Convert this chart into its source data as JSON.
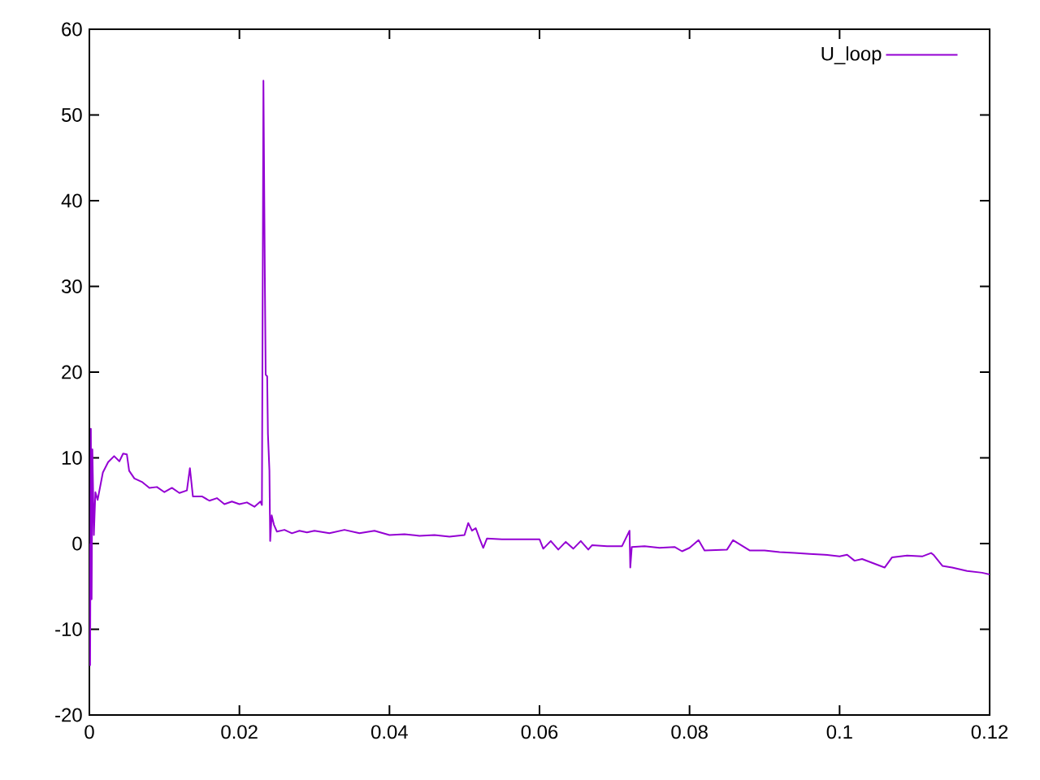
{
  "chart_data": {
    "type": "line",
    "xlim": [
      0,
      0.12
    ],
    "ylim": [
      -20,
      60
    ],
    "xticks": [
      0,
      0.02,
      0.04,
      0.06,
      0.08,
      0.1,
      0.12
    ],
    "yticks": [
      -20,
      -10,
      0,
      10,
      20,
      30,
      40,
      50,
      60
    ],
    "legend": "top right",
    "line_style": "solid",
    "series": [
      {
        "name": "U_loop",
        "color": "#9400d3",
        "x": [
          0.0,
          0.0001,
          0.0002,
          0.0003,
          0.0004,
          0.0006,
          0.0008,
          0.0011,
          0.0018,
          0.0025,
          0.0033,
          0.004,
          0.0045,
          0.005,
          0.0053,
          0.006,
          0.007,
          0.008,
          0.009,
          0.01,
          0.011,
          0.012,
          0.013,
          0.0134,
          0.0138,
          0.015,
          0.016,
          0.017,
          0.018,
          0.019,
          0.02,
          0.021,
          0.022,
          0.0228,
          0.023,
          0.0232,
          0.0234,
          0.0235,
          0.0237,
          0.0238,
          0.024,
          0.0241,
          0.0243,
          0.0246,
          0.025,
          0.026,
          0.027,
          0.028,
          0.029,
          0.03,
          0.032,
          0.034,
          0.036,
          0.038,
          0.04,
          0.042,
          0.044,
          0.046,
          0.048,
          0.05,
          0.0505,
          0.051,
          0.0515,
          0.052,
          0.0525,
          0.053,
          0.055,
          0.058,
          0.06,
          0.0605,
          0.0615,
          0.0625,
          0.0635,
          0.0645,
          0.0655,
          0.0665,
          0.067,
          0.069,
          0.071,
          0.072,
          0.0721,
          0.0723,
          0.074,
          0.076,
          0.078,
          0.079,
          0.08,
          0.0812,
          0.082,
          0.085,
          0.0858,
          0.088,
          0.09,
          0.092,
          0.094,
          0.096,
          0.098,
          0.1,
          0.101,
          0.102,
          0.103,
          0.106,
          0.107,
          0.109,
          0.111,
          0.1122,
          0.1125,
          0.1137,
          0.115,
          0.117,
          0.119,
          0.12
        ],
        "values": [
          0,
          -14.2,
          13.4,
          -6.5,
          11,
          1,
          6,
          5.1,
          8.3,
          9.5,
          10.2,
          9.6,
          10.5,
          10.4,
          8.5,
          7.6,
          7.2,
          6.5,
          6.6,
          6.0,
          6.5,
          5.9,
          6.2,
          8.8,
          5.5,
          5.5,
          5.0,
          5.3,
          4.6,
          4.9,
          4.6,
          4.8,
          4.3,
          4.9,
          4.5,
          54,
          30,
          19.7,
          19.5,
          12.8,
          8.5,
          0.3,
          3.3,
          2.2,
          1.4,
          1.6,
          1.2,
          1.5,
          1.3,
          1.5,
          1.2,
          1.6,
          1.2,
          1.5,
          1.0,
          1.1,
          0.9,
          1.0,
          0.8,
          1.0,
          2.4,
          1.5,
          1.8,
          0.6,
          -0.5,
          0.6,
          0.5,
          0.5,
          0.5,
          -0.6,
          0.3,
          -0.7,
          0.2,
          -0.6,
          0.3,
          -0.7,
          -0.2,
          -0.3,
          -0.3,
          1.5,
          -2.8,
          -0.4,
          -0.3,
          -0.5,
          -0.4,
          -0.9,
          -0.5,
          0.4,
          -0.8,
          -0.7,
          0.4,
          -0.8,
          -0.8,
          -1.0,
          -1.1,
          -1.2,
          -1.3,
          -1.5,
          -1.3,
          -2.0,
          -1.8,
          -2.8,
          -1.6,
          -1.4,
          -1.5,
          -1.1,
          -1.3,
          -2.6,
          -2.8,
          -3.2,
          -3.4,
          -3.6
        ]
      }
    ]
  }
}
